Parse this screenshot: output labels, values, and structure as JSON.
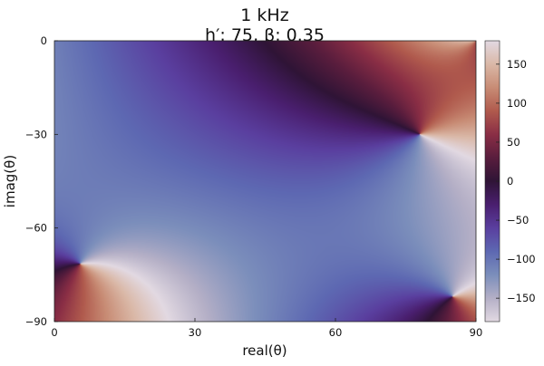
{
  "chart_data": {
    "type": "heatmap",
    "title": [
      "1 kHz",
      "h′: 75, β: 0.35"
    ],
    "xlabel": "real(θ)",
    "ylabel": "imag(θ)",
    "xlim": [
      0,
      90
    ],
    "ylim": [
      -90,
      0
    ],
    "xticks": [
      0,
      30,
      60,
      90
    ],
    "yticks": [
      0,
      -30,
      -60,
      -90
    ],
    "colorbar": {
      "range": [
        -180,
        180
      ],
      "ticks": [
        150,
        100,
        50,
        0,
        -50,
        -100,
        -150
      ],
      "colormap": "twilight-shifted (cyclic phase, degrees)",
      "colormap_stops": [
        "#e2d9e2",
        "#b4afc6",
        "#7b8ebb",
        "#5d68b2",
        "#5a3f9f",
        "#4a1f6f",
        "#2f1436",
        "#591d3d",
        "#8a2e45",
        "#b05a4d",
        "#c88c75",
        "#dab8a7",
        "#e2d9e2"
      ]
    },
    "phase_singularities": [
      {
        "x": 5.5,
        "y": -71.5,
        "winding": 1
      },
      {
        "x": 78,
        "y": -30,
        "winding": -1
      },
      {
        "x": 85,
        "y": -82,
        "winding": 1
      },
      {
        "x": 90,
        "y": 0,
        "winding": -1
      }
    ],
    "grid": false,
    "legend": "none"
  }
}
